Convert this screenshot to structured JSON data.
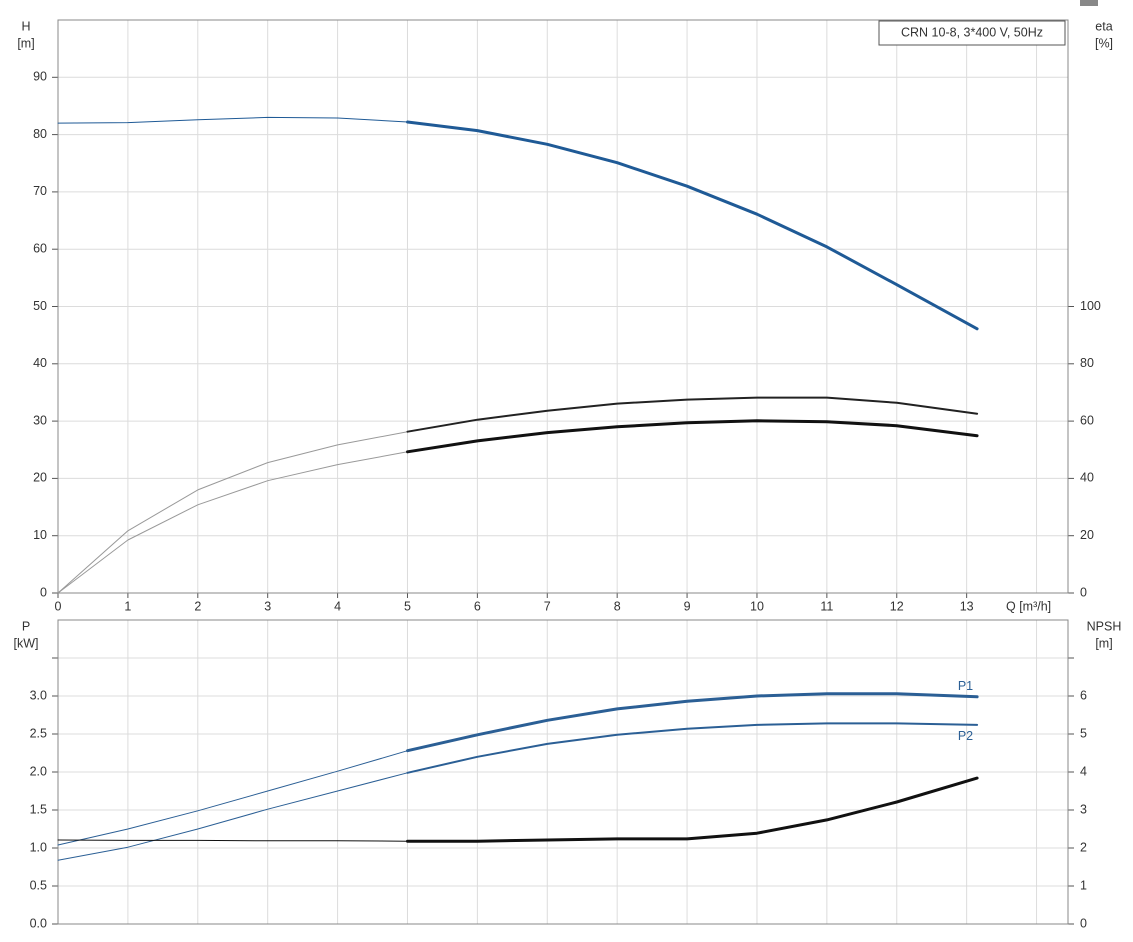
{
  "chart_data": [
    {
      "type": "line",
      "annotation": "CRN 10-8, 3*400 V, 50Hz",
      "ylabel": [
        "H",
        "[m]"
      ],
      "y2label": [
        "eta",
        "[%]"
      ],
      "xlabel": "Q [m³/h]",
      "xlim": [
        0,
        14.45
      ],
      "ylim": [
        0,
        100
      ],
      "y2lim": [
        0,
        200
      ],
      "xticks": [
        0,
        1,
        2,
        3,
        4,
        5,
        6,
        7,
        8,
        9,
        10,
        11,
        12,
        13,
        {
          "value": 14,
          "label": null
        }
      ],
      "yticks": [
        0,
        10,
        20,
        30,
        40,
        50,
        60,
        70,
        80,
        90
      ],
      "y2ticks": [
        0,
        20,
        40,
        60,
        80,
        100
      ],
      "grid": true,
      "xtick_labels": true,
      "series": [
        {
          "color": "#1f5a96",
          "style": "thin",
          "axis": "y",
          "x": [
            0,
            1,
            2,
            3,
            4,
            5
          ],
          "values": [
            82,
            82.1,
            82.6,
            83,
            82.9,
            82.2
          ]
        },
        {
          "color": "#1f5a96",
          "style": "thick",
          "axis": "y",
          "x": [
            5,
            6,
            7,
            8,
            9,
            10,
            11,
            12,
            13.15
          ],
          "values": [
            82.2,
            80.7,
            78.3,
            75.1,
            71,
            66.1,
            60.4,
            53.8,
            46.1
          ]
        },
        {
          "color": "#999999",
          "style": "thin",
          "axis": "y2",
          "x": [
            0,
            1,
            2,
            3,
            4,
            5
          ],
          "values": [
            0,
            21.7,
            36,
            45.5,
            51.7,
            56.3
          ]
        },
        {
          "color": "#222222",
          "style": "medium",
          "axis": "y2",
          "x": [
            5,
            6,
            7,
            8,
            9,
            10,
            11,
            12,
            13.15
          ],
          "values": [
            56.3,
            60.5,
            63.6,
            66.1,
            67.5,
            68.2,
            68.2,
            66.4,
            62.6
          ]
        },
        {
          "color": "#999999",
          "style": "thin",
          "axis": "y2",
          "x": [
            0,
            1,
            2,
            3,
            4,
            5
          ],
          "values": [
            0,
            18.5,
            30.8,
            39.2,
            44.8,
            49.3
          ]
        },
        {
          "color": "#111111",
          "style": "thick",
          "axis": "y2",
          "x": [
            5,
            6,
            7,
            8,
            9,
            10,
            11,
            12,
            13.15
          ],
          "values": [
            49.3,
            53.1,
            56,
            58,
            59.4,
            60.1,
            59.8,
            58.4,
            54.9
          ]
        }
      ]
    },
    {
      "type": "line",
      "ylabel": [
        "P",
        "[kW]"
      ],
      "y2label": [
        "NPSH",
        "[m]"
      ],
      "xlim": [
        0,
        14.45
      ],
      "ylim": [
        0,
        4
      ],
      "y2lim": [
        0,
        8
      ],
      "xticks": [
        0,
        1,
        2,
        3,
        4,
        5,
        6,
        7,
        8,
        9,
        10,
        11,
        12,
        13,
        14
      ],
      "yticks": [
        {
          "value": 0,
          "label": "0.0"
        },
        0.5,
        {
          "value": 1,
          "label": "1.0"
        },
        1.5,
        {
          "value": 2,
          "label": "2.0"
        },
        2.5,
        {
          "value": 3,
          "label": "3.0"
        },
        {
          "value": 3.5,
          "label": null
        }
      ],
      "y2ticks": [
        0,
        1,
        2,
        3,
        4,
        5,
        6,
        {
          "value": 7,
          "label": null
        }
      ],
      "grid": true,
      "xtick_labels": false,
      "series": [
        {
          "color": "#2b5f95",
          "style": "thin",
          "axis": "y",
          "x": [
            0,
            1,
            2,
            3,
            4,
            5
          ],
          "values": [
            1.04,
            1.25,
            1.49,
            1.75,
            2.01,
            2.28
          ]
        },
        {
          "name": "P1",
          "color": "#2b5f95",
          "style": "thick",
          "axis": "y",
          "x": [
            5,
            6,
            7,
            8,
            9,
            10,
            11,
            12,
            13.15
          ],
          "values": [
            2.28,
            2.49,
            2.68,
            2.83,
            2.93,
            3.0,
            3.03,
            3.03,
            2.99
          ]
        },
        {
          "color": "#2b5f95",
          "style": "thin",
          "axis": "y",
          "x": [
            0,
            1,
            2,
            3,
            4,
            5
          ],
          "values": [
            0.84,
            1.01,
            1.25,
            1.51,
            1.75,
            1.99
          ]
        },
        {
          "name": "P2",
          "color": "#2b5f95",
          "style": "medium",
          "axis": "y",
          "x": [
            5,
            6,
            7,
            8,
            9,
            10,
            11,
            12,
            13.15
          ],
          "values": [
            1.99,
            2.2,
            2.37,
            2.49,
            2.57,
            2.62,
            2.64,
            2.64,
            2.62
          ]
        },
        {
          "color": "#111111",
          "style": "thin",
          "axis": "y2",
          "x": [
            0,
            1,
            2,
            3,
            4,
            5
          ],
          "values": [
            2.21,
            2.2,
            2.2,
            2.19,
            2.19,
            2.18
          ]
        },
        {
          "color": "#111111",
          "style": "thick",
          "axis": "y2",
          "x": [
            5,
            6,
            7,
            8,
            9,
            10,
            11,
            12,
            13.15
          ],
          "values": [
            2.18,
            2.18,
            2.21,
            2.24,
            2.24,
            2.39,
            2.74,
            3.21,
            3.84
          ]
        }
      ]
    }
  ]
}
